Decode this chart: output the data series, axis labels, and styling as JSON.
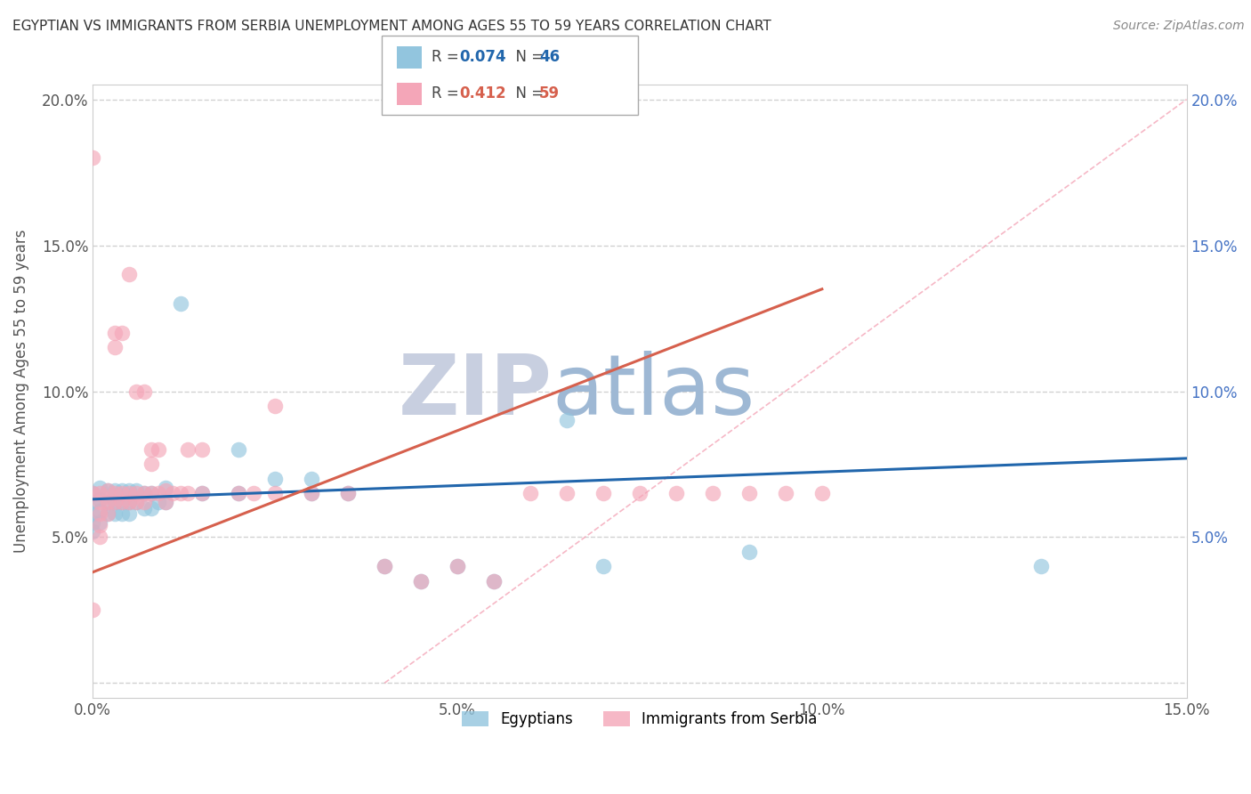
{
  "title": "EGYPTIAN VS IMMIGRANTS FROM SERBIA UNEMPLOYMENT AMONG AGES 55 TO 59 YEARS CORRELATION CHART",
  "source": "Source: ZipAtlas.com",
  "ylabel": "Unemployment Among Ages 55 to 59 years",
  "xlim": [
    0.0,
    0.15
  ],
  "ylim": [
    -0.005,
    0.205
  ],
  "blue_color": "#92c5de",
  "pink_color": "#f4a6b8",
  "line_blue": "#2166ac",
  "line_pink": "#d6604d",
  "watermark_zip": "ZIP",
  "watermark_atlas": "atlas",
  "watermark_color_zip": "#c8cfe0",
  "watermark_color_atlas": "#9eb8d4",
  "grid_color": "#cccccc",
  "background_color": "#ffffff",
  "eg_x": [
    0.0,
    0.0,
    0.0,
    0.0,
    0.0,
    0.001,
    0.001,
    0.001,
    0.001,
    0.002,
    0.002,
    0.002,
    0.003,
    0.003,
    0.003,
    0.004,
    0.004,
    0.004,
    0.005,
    0.005,
    0.005,
    0.006,
    0.006,
    0.007,
    0.007,
    0.008,
    0.008,
    0.009,
    0.01,
    0.01,
    0.012,
    0.015,
    0.02,
    0.02,
    0.025,
    0.03,
    0.03,
    0.035,
    0.04,
    0.045,
    0.05,
    0.055,
    0.065,
    0.07,
    0.09,
    0.13
  ],
  "eg_y": [
    0.065,
    0.062,
    0.058,
    0.055,
    0.052,
    0.067,
    0.063,
    0.059,
    0.055,
    0.066,
    0.062,
    0.058,
    0.066,
    0.062,
    0.058,
    0.066,
    0.062,
    0.058,
    0.066,
    0.062,
    0.058,
    0.066,
    0.062,
    0.065,
    0.06,
    0.065,
    0.06,
    0.062,
    0.067,
    0.062,
    0.13,
    0.065,
    0.08,
    0.065,
    0.07,
    0.065,
    0.07,
    0.065,
    0.04,
    0.035,
    0.04,
    0.035,
    0.09,
    0.04,
    0.045,
    0.04
  ],
  "sr_x": [
    0.001,
    0.001,
    0.001,
    0.001,
    0.001,
    0.002,
    0.002,
    0.002,
    0.003,
    0.003,
    0.003,
    0.003,
    0.004,
    0.004,
    0.004,
    0.005,
    0.005,
    0.005,
    0.006,
    0.006,
    0.006,
    0.007,
    0.007,
    0.007,
    0.008,
    0.008,
    0.008,
    0.009,
    0.009,
    0.01,
    0.01,
    0.011,
    0.012,
    0.013,
    0.013,
    0.015,
    0.015,
    0.02,
    0.022,
    0.025,
    0.025,
    0.03,
    0.035,
    0.04,
    0.045,
    0.05,
    0.055,
    0.06,
    0.065,
    0.07,
    0.075,
    0.08,
    0.085,
    0.09,
    0.095,
    0.1,
    0.0,
    0.0,
    0.0
  ],
  "sr_y": [
    0.065,
    0.062,
    0.058,
    0.054,
    0.05,
    0.066,
    0.062,
    0.058,
    0.12,
    0.115,
    0.065,
    0.062,
    0.12,
    0.065,
    0.062,
    0.14,
    0.065,
    0.062,
    0.1,
    0.065,
    0.062,
    0.1,
    0.065,
    0.062,
    0.08,
    0.075,
    0.065,
    0.08,
    0.065,
    0.066,
    0.062,
    0.065,
    0.065,
    0.08,
    0.065,
    0.08,
    0.065,
    0.065,
    0.065,
    0.095,
    0.065,
    0.065,
    0.065,
    0.04,
    0.035,
    0.04,
    0.035,
    0.065,
    0.065,
    0.065,
    0.065,
    0.065,
    0.065,
    0.065,
    0.065,
    0.065,
    0.18,
    0.065,
    0.025
  ],
  "eg_line_x": [
    0.0,
    0.15
  ],
  "eg_line_y": [
    0.063,
    0.077
  ],
  "sr_line_x": [
    0.0,
    0.1
  ],
  "sr_line_y": [
    0.038,
    0.135
  ],
  "diag_line_x": [
    0.0,
    0.15
  ],
  "diag_line_y": [
    0.0,
    0.2
  ]
}
